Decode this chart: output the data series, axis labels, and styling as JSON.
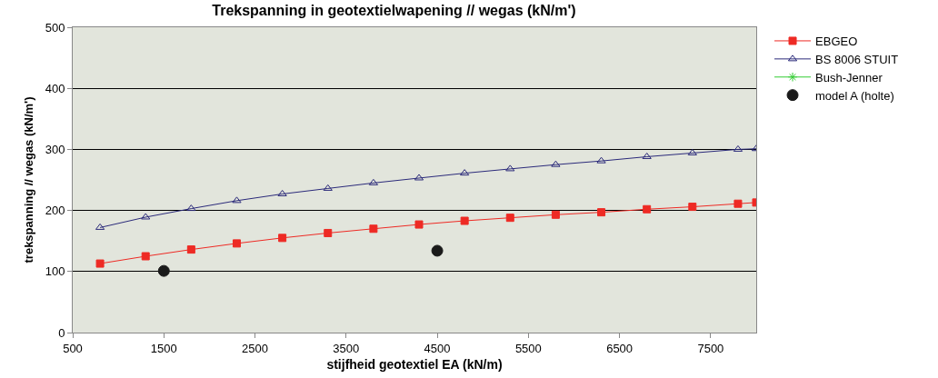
{
  "chart_data": {
    "type": "line",
    "title": "Trekspanning in geotextielwapening // wegas (kN/m')",
    "xlabel": "stijfheid geotextiel EA (kN/m)",
    "ylabel": "trekspanning // wegas (kN/m')",
    "x": [
      800,
      1300,
      1800,
      2300,
      2800,
      3300,
      3800,
      4300,
      4800,
      5300,
      5800,
      6300,
      6800,
      7300,
      7800,
      8000
    ],
    "series": [
      {
        "name": "EBGEO",
        "color": "#ee2a24",
        "marker": "square",
        "values": [
          113,
          125,
          136,
          146,
          155,
          163,
          170,
          177,
          183,
          188,
          193,
          197,
          202,
          206,
          211,
          213
        ]
      },
      {
        "name": "BS 8006 STUIT",
        "color": "#2b2a7a",
        "marker": "triangle",
        "values": [
          172,
          189,
          203,
          216,
          227,
          236,
          245,
          253,
          261,
          268,
          275,
          281,
          288,
          294,
          300,
          301
        ]
      },
      {
        "name": "Bush-Jenner",
        "color": "#33cc33",
        "marker": "star",
        "values": [
          null,
          null,
          null,
          null,
          null,
          null,
          null,
          null,
          null,
          null,
          null,
          null,
          null,
          null,
          null,
          null
        ]
      },
      {
        "name": "model A (holte)",
        "type": "scatter",
        "color": "#1a1a1a",
        "marker": "circle",
        "x": [
          1500,
          4500
        ],
        "values": [
          101,
          134
        ]
      }
    ],
    "xlim": [
      500,
      8000
    ],
    "xticks": [
      500,
      1500,
      2500,
      3500,
      4500,
      5500,
      6500,
      7500
    ],
    "ylim": [
      0,
      500
    ],
    "yticks": [
      0,
      100,
      200,
      300,
      400,
      500
    ],
    "grid": "y",
    "legend": "right"
  }
}
